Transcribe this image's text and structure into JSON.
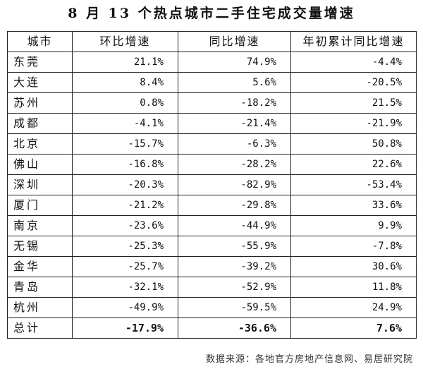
{
  "title": "8 月 13 个热点城市二手住宅成交量增速",
  "table": {
    "headers": [
      "城市",
      "环比增速",
      "同比增速",
      "年初累计同比增速"
    ],
    "rows": [
      {
        "city": "东莞",
        "mom": "21.1%",
        "yoy": "74.9%",
        "ytd": "-4.4%"
      },
      {
        "city": "大连",
        "mom": "8.4%",
        "yoy": "5.6%",
        "ytd": "-20.5%"
      },
      {
        "city": "苏州",
        "mom": "0.8%",
        "yoy": "-18.2%",
        "ytd": "21.5%"
      },
      {
        "city": "成都",
        "mom": "-4.1%",
        "yoy": "-21.4%",
        "ytd": "-21.9%"
      },
      {
        "city": "北京",
        "mom": "-15.7%",
        "yoy": "-6.3%",
        "ytd": "50.8%"
      },
      {
        "city": "佛山",
        "mom": "-16.8%",
        "yoy": "-28.2%",
        "ytd": "22.6%"
      },
      {
        "city": "深圳",
        "mom": "-20.3%",
        "yoy": "-82.9%",
        "ytd": "-53.4%"
      },
      {
        "city": "厦门",
        "mom": "-21.2%",
        "yoy": "-29.8%",
        "ytd": "33.6%"
      },
      {
        "city": "南京",
        "mom": "-23.6%",
        "yoy": "-44.9%",
        "ytd": "9.9%"
      },
      {
        "city": "无锡",
        "mom": "-25.3%",
        "yoy": "-55.9%",
        "ytd": "-7.8%"
      },
      {
        "city": "金华",
        "mom": "-25.7%",
        "yoy": "-39.2%",
        "ytd": "30.6%"
      },
      {
        "city": "青岛",
        "mom": "-32.1%",
        "yoy": "-52.9%",
        "ytd": "11.8%"
      },
      {
        "city": "杭州",
        "mom": "-49.9%",
        "yoy": "-59.5%",
        "ytd": "24.9%"
      }
    ],
    "total": {
      "city": "总计",
      "mom": "-17.9%",
      "yoy": "-36.6%",
      "ytd": "7.6%"
    }
  },
  "source": "数据来源：各地官方房地产信息网、易居研究院"
}
